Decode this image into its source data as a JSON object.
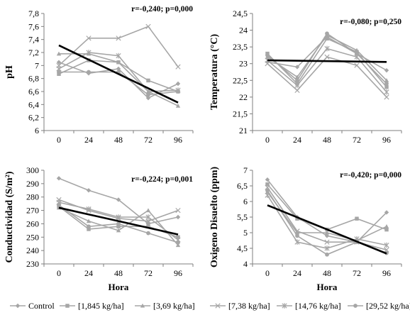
{
  "colors": {
    "series": "#a6a6a6",
    "trend": "#000000",
    "axis": "#7f7f7f",
    "text": "#000000"
  },
  "legend": [
    {
      "label": "Control",
      "marker": "diamond"
    },
    {
      "label": "[1,845 kg/ha]",
      "marker": "square"
    },
    {
      "label": "[3,69 kg/ha]",
      "marker": "triangle"
    },
    {
      "label": "[7,38 kg/ha]",
      "marker": "x"
    },
    {
      "label": "[14,76 kg/ha]",
      "marker": "star"
    },
    {
      "label": "[29,52 kg/ha]",
      "marker": "circle"
    }
  ],
  "chart_data": [
    {
      "type": "line",
      "ylabel": "pH",
      "xlabel": "",
      "annotation": "r=-0,240; p=0,000",
      "x": [
        0,
        24,
        48,
        72,
        96
      ],
      "ylim": [
        6,
        7.8
      ],
      "yticks": [
        6,
        6.2,
        6.4,
        6.6,
        6.8,
        7,
        7.2,
        7.4,
        7.6,
        7.8
      ],
      "ytick_labels": [
        "6",
        "6,2",
        "6,4",
        "6,6",
        "6,8",
        "7",
        "7,2",
        "7,4",
        "7,6",
        "7,8"
      ],
      "series": [
        {
          "values": [
            7.05,
            6.88,
            6.95,
            6.5,
            6.72
          ]
        },
        {
          "values": [
            6.87,
            7.08,
            7.05,
            6.77,
            6.6
          ]
        },
        {
          "values": [
            7.18,
            7.18,
            7.05,
            6.6,
            6.38
          ]
        },
        {
          "values": [
            7.0,
            7.42,
            7.42,
            7.6,
            6.98
          ]
        },
        {
          "values": [
            6.95,
            7.2,
            7.15,
            6.6,
            6.62
          ]
        },
        {
          "values": [
            6.9,
            6.9,
            6.9,
            6.55,
            6.6
          ]
        }
      ],
      "trend": {
        "start": 7.31,
        "end": 6.43
      }
    },
    {
      "type": "line",
      "ylabel": "Temperatura (°C)",
      "xlabel": "",
      "annotation": "r=-0,080; p=0,250",
      "x": [
        0,
        24,
        48,
        72,
        96
      ],
      "ylim": [
        21,
        24.5
      ],
      "yticks": [
        21,
        21.5,
        22,
        22.5,
        23,
        23.5,
        24,
        24.5
      ],
      "ytick_labels": [
        "21",
        "21,5",
        "22",
        "22,5",
        "23",
        "23,5",
        "24",
        "24,5"
      ],
      "series": [
        {
          "values": [
            23.05,
            22.9,
            23.8,
            23.3,
            22.8
          ]
        },
        {
          "values": [
            23.3,
            22.4,
            23.75,
            23.35,
            22.3
          ]
        },
        {
          "values": [
            23.2,
            22.6,
            23.85,
            23.4,
            22.5
          ]
        },
        {
          "values": [
            23.0,
            22.2,
            23.2,
            22.95,
            22.0
          ]
        },
        {
          "values": [
            23.1,
            22.35,
            23.45,
            23.2,
            22.15
          ]
        },
        {
          "values": [
            23.25,
            22.5,
            23.9,
            23.3,
            22.4
          ]
        }
      ],
      "trend": {
        "start": 23.1,
        "end": 23.05
      }
    },
    {
      "type": "line",
      "ylabel": "Conductividad (S/m²)",
      "xlabel": "Hora",
      "annotation": "r=-0,224; p=0,001",
      "x": [
        0,
        24,
        48,
        72,
        96
      ],
      "ylim": [
        230,
        300
      ],
      "yticks": [
        230,
        240,
        250,
        260,
        270,
        280,
        290,
        300
      ],
      "ytick_labels": [
        "230",
        "240",
        "250",
        "260",
        "270",
        "280",
        "290",
        "300"
      ],
      "series": [
        {
          "values": [
            294,
            285,
            278,
            260,
            265
          ]
        },
        {
          "values": [
            273,
            256,
            258,
            258,
            250
          ]
        },
        {
          "values": [
            272,
            262,
            255,
            270,
            244
          ]
        },
        {
          "values": [
            278,
            270,
            264,
            262,
            270
          ]
        },
        {
          "values": [
            276,
            271,
            265,
            265,
            248
          ]
        },
        {
          "values": [
            274,
            258,
            260,
            253,
            246
          ]
        }
      ],
      "trend": {
        "start": 272,
        "end": 252
      }
    },
    {
      "type": "line",
      "ylabel": "Oxigeno Disuelto (ppm)",
      "xlabel": "Hora",
      "annotation": "r=-0,420; p=0,000",
      "x": [
        0,
        24,
        48,
        72,
        96
      ],
      "ylim": [
        4,
        7
      ],
      "yticks": [
        4,
        4.5,
        5,
        5.5,
        6,
        6.5,
        7
      ],
      "ytick_labels": [
        "4",
        "4,5",
        "5",
        "5,5",
        "6",
        "6,5",
        "7"
      ],
      "series": [
        {
          "values": [
            6.7,
            5.5,
            4.9,
            4.7,
            5.65
          ]
        },
        {
          "values": [
            6.55,
            5.45,
            5.1,
            5.45,
            5.1
          ]
        },
        {
          "values": [
            6.3,
            5.0,
            5.0,
            4.75,
            5.2
          ]
        },
        {
          "values": [
            6.45,
            5.05,
            4.7,
            4.7,
            4.45
          ]
        },
        {
          "values": [
            6.2,
            4.7,
            4.5,
            4.8,
            4.6
          ]
        },
        {
          "values": [
            6.35,
            4.9,
            4.3,
            4.7,
            4.35
          ]
        }
      ],
      "trend": {
        "start": 5.88,
        "end": 4.33
      }
    }
  ]
}
